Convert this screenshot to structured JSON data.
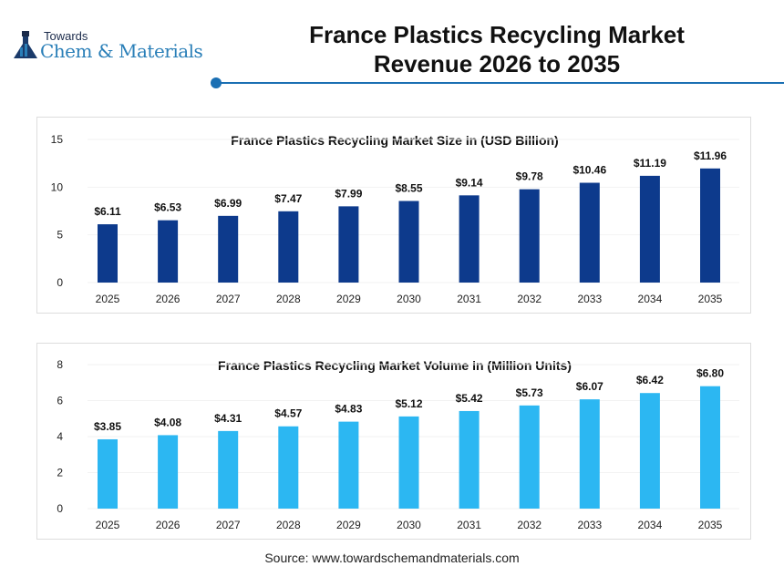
{
  "header": {
    "logo_small": "Towards",
    "logo_big": "Chem & Materials",
    "title_line1": "France Plastics Recycling Market",
    "title_line2": "Revenue 2026 to 2035",
    "accent": "#1a6fb3"
  },
  "chart_data": [
    {
      "type": "bar",
      "title": "France Plastics Recycling Market Size in (USD Billion)",
      "categories": [
        "2025",
        "2026",
        "2027",
        "2028",
        "2029",
        "2030",
        "2031",
        "2032",
        "2033",
        "2034",
        "2035"
      ],
      "values": [
        6.11,
        6.53,
        6.99,
        7.47,
        7.99,
        8.55,
        9.14,
        9.78,
        10.46,
        11.19,
        11.96
      ],
      "labels": [
        "$6.11",
        "$6.53",
        "$6.99",
        "$7.47",
        "$7.99",
        "$8.55",
        "$9.14",
        "$9.78",
        "$10.46",
        "$11.19",
        "$11.96"
      ],
      "ylim": [
        0,
        15
      ],
      "yticks": [
        "0",
        "5",
        "10",
        "15"
      ],
      "color": "#0d3a8c",
      "grid": false
    },
    {
      "type": "bar",
      "title": "France Plastics Recycling Market Volume in (Million Units)",
      "categories": [
        "2025",
        "2026",
        "2027",
        "2028",
        "2029",
        "2030",
        "2031",
        "2032",
        "2033",
        "2034",
        "2035"
      ],
      "values": [
        3.85,
        4.08,
        4.31,
        4.57,
        4.83,
        5.12,
        5.42,
        5.73,
        6.07,
        6.42,
        6.8
      ],
      "labels": [
        "$3.85",
        "$4.08",
        "$4.31",
        "$4.57",
        "$4.83",
        "$5.12",
        "$5.42",
        "$5.73",
        "$6.07",
        "$6.42",
        "$6.80"
      ],
      "ylim": [
        0,
        8
      ],
      "yticks": [
        "0",
        "2",
        "4",
        "6",
        "8"
      ],
      "color": "#2cb7f2",
      "grid": false
    }
  ],
  "footer": {
    "source": "Source: www.towardschemandmaterials.com"
  }
}
